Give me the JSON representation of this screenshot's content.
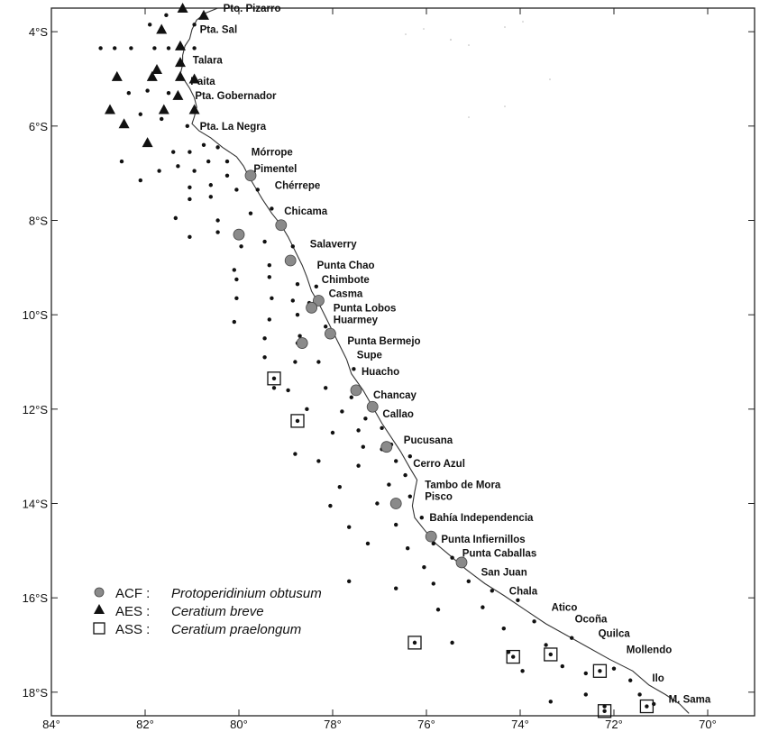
{
  "map": {
    "lon_range": [
      -84,
      -69
    ],
    "lat_range": [
      -18.5,
      -3.5
    ],
    "lat_ticks": [
      {
        "lat": -4,
        "label": "4°S"
      },
      {
        "lat": -6,
        "label": "6°S"
      },
      {
        "lat": -8,
        "label": "8°S"
      },
      {
        "lat": -10,
        "label": "10°S"
      },
      {
        "lat": -12,
        "label": "12°S"
      },
      {
        "lat": -14,
        "label": "14°S"
      },
      {
        "lat": -16,
        "label": "16°S"
      },
      {
        "lat": -18,
        "label": "18°S"
      }
    ],
    "lon_ticks": [
      {
        "lon": -84,
        "label": "84°"
      },
      {
        "lon": -82,
        "label": "82°"
      },
      {
        "lon": -80,
        "label": "80°"
      },
      {
        "lon": -78,
        "label": "78°"
      },
      {
        "lon": -76,
        "label": "76°"
      },
      {
        "lon": -74,
        "label": "74°"
      },
      {
        "lon": -72,
        "label": "72°"
      },
      {
        "lon": -70,
        "label": "70°"
      }
    ],
    "coastline": [
      [
        -80.45,
        -3.5
      ],
      [
        -80.7,
        -3.6
      ],
      [
        -80.9,
        -3.75
      ],
      [
        -81.0,
        -3.95
      ],
      [
        -81.05,
        -4.15
      ],
      [
        -81.15,
        -4.3
      ],
      [
        -81.2,
        -4.5
      ],
      [
        -81.2,
        -4.7
      ],
      [
        -81.25,
        -4.9
      ],
      [
        -81.15,
        -5.05
      ],
      [
        -81.05,
        -5.2
      ],
      [
        -80.95,
        -5.4
      ],
      [
        -80.9,
        -5.6
      ],
      [
        -80.95,
        -5.8
      ],
      [
        -81.0,
        -5.95
      ],
      [
        -80.85,
        -6.1
      ],
      [
        -80.6,
        -6.25
      ],
      [
        -80.35,
        -6.45
      ],
      [
        -80.05,
        -6.65
      ],
      [
        -79.9,
        -6.85
      ],
      [
        -79.8,
        -7.05
      ],
      [
        -79.65,
        -7.3
      ],
      [
        -79.5,
        -7.55
      ],
      [
        -79.3,
        -7.85
      ],
      [
        -79.1,
        -8.1
      ],
      [
        -78.95,
        -8.35
      ],
      [
        -78.8,
        -8.65
      ],
      [
        -78.65,
        -8.95
      ],
      [
        -78.55,
        -9.2
      ],
      [
        -78.45,
        -9.5
      ],
      [
        -78.3,
        -9.75
      ],
      [
        -78.15,
        -10.05
      ],
      [
        -78.0,
        -10.35
      ],
      [
        -77.85,
        -10.65
      ],
      [
        -77.7,
        -10.95
      ],
      [
        -77.6,
        -11.25
      ],
      [
        -77.35,
        -11.6
      ],
      [
        -77.15,
        -11.95
      ],
      [
        -76.95,
        -12.3
      ],
      [
        -76.75,
        -12.6
      ],
      [
        -76.55,
        -12.9
      ],
      [
        -76.35,
        -13.25
      ],
      [
        -76.2,
        -13.5
      ],
      [
        -76.25,
        -13.75
      ],
      [
        -76.3,
        -14.05
      ],
      [
        -76.25,
        -14.3
      ],
      [
        -76.05,
        -14.55
      ],
      [
        -75.8,
        -14.85
      ],
      [
        -75.5,
        -15.1
      ],
      [
        -75.15,
        -15.4
      ],
      [
        -74.75,
        -15.7
      ],
      [
        -74.35,
        -15.95
      ],
      [
        -73.9,
        -16.25
      ],
      [
        -73.45,
        -16.55
      ],
      [
        -73.0,
        -16.8
      ],
      [
        -72.55,
        -17.05
      ],
      [
        -72.1,
        -17.3
      ],
      [
        -71.6,
        -17.55
      ],
      [
        -71.25,
        -17.85
      ],
      [
        -70.9,
        -18.05
      ],
      [
        -70.6,
        -18.25
      ],
      [
        -70.4,
        -18.45
      ]
    ],
    "places": [
      {
        "name": "Pto. Pizarro",
        "lon": -80.45,
        "lat": -3.5
      },
      {
        "name": "Pta. Sal",
        "lon": -80.95,
        "lat": -3.95
      },
      {
        "name": "Talara",
        "lon": -81.1,
        "lat": -4.6
      },
      {
        "name": "Paita",
        "lon": -81.15,
        "lat": -5.05
      },
      {
        "name": "Pta. Gobernador",
        "lon": -81.05,
        "lat": -5.35
      },
      {
        "name": "Pta. La Negra",
        "lon": -80.95,
        "lat": -6.0
      },
      {
        "name": "Mórrope",
        "lon": -79.85,
        "lat": -6.55
      },
      {
        "name": "Pimentel",
        "lon": -79.8,
        "lat": -6.9
      },
      {
        "name": "Chérrepe",
        "lon": -79.35,
        "lat": -7.25
      },
      {
        "name": "Chicama",
        "lon": -79.15,
        "lat": -7.8
      },
      {
        "name": "Salaverry",
        "lon": -78.6,
        "lat": -8.5
      },
      {
        "name": "Punta Chao",
        "lon": -78.45,
        "lat": -8.95
      },
      {
        "name": "Chimbote",
        "lon": -78.35,
        "lat": -9.25
      },
      {
        "name": "Casma",
        "lon": -78.2,
        "lat": -9.55
      },
      {
        "name": "Punta Lobos",
        "lon": -78.1,
        "lat": -9.85
      },
      {
        "name": "Huarmey",
        "lon": -78.1,
        "lat": -10.1
      },
      {
        "name": "Punta Bermejo",
        "lon": -77.8,
        "lat": -10.55
      },
      {
        "name": "Supe",
        "lon": -77.6,
        "lat": -10.85
      },
      {
        "name": "Huacho",
        "lon": -77.5,
        "lat": -11.2
      },
      {
        "name": "Chancay",
        "lon": -77.25,
        "lat": -11.7
      },
      {
        "name": "Callao",
        "lon": -77.05,
        "lat": -12.1
      },
      {
        "name": "Pucusana",
        "lon": -76.6,
        "lat": -12.65
      },
      {
        "name": "Cerro Azul",
        "lon": -76.4,
        "lat": -13.15
      },
      {
        "name": "Tambo de Mora",
        "lon": -76.15,
        "lat": -13.6
      },
      {
        "name": "Pisco",
        "lon": -76.15,
        "lat": -13.85
      },
      {
        "name": "Bahía Independencia",
        "lon": -76.05,
        "lat": -14.3
      },
      {
        "name": "Punta Infiernillos",
        "lon": -75.8,
        "lat": -14.75
      },
      {
        "name": "Punta Caballas",
        "lon": -75.35,
        "lat": -15.05
      },
      {
        "name": "San Juan",
        "lon": -74.95,
        "lat": -15.45
      },
      {
        "name": "Chala",
        "lon": -74.35,
        "lat": -15.85
      },
      {
        "name": "Atico",
        "lon": -73.45,
        "lat": -16.2
      },
      {
        "name": "Ocoña",
        "lon": -72.95,
        "lat": -16.45
      },
      {
        "name": "Quilca",
        "lon": -72.45,
        "lat": -16.75
      },
      {
        "name": "Mollendo",
        "lon": -71.85,
        "lat": -17.1
      },
      {
        "name": "Ilo",
        "lon": -71.3,
        "lat": -17.7
      },
      {
        "name": "M. Sama",
        "lon": -70.95,
        "lat": -18.15
      }
    ],
    "stations": [
      [
        -82.95,
        -4.35
      ],
      [
        -82.65,
        -4.35
      ],
      [
        -82.3,
        -4.35
      ],
      [
        -81.8,
        -4.35
      ],
      [
        -81.5,
        -4.35
      ],
      [
        -80.95,
        -4.35
      ],
      [
        -81.9,
        -3.85
      ],
      [
        -81.55,
        -3.65
      ],
      [
        -80.95,
        -3.85
      ],
      [
        -82.35,
        -5.3
      ],
      [
        -81.95,
        -5.25
      ],
      [
        -81.5,
        -5.3
      ],
      [
        -82.1,
        -5.75
      ],
      [
        -81.65,
        -5.85
      ],
      [
        -81.1,
        -6.0
      ],
      [
        -82.5,
        -6.75
      ],
      [
        -82.1,
        -7.15
      ],
      [
        -81.7,
        -6.95
      ],
      [
        -81.4,
        -6.55
      ],
      [
        -81.05,
        -6.55
      ],
      [
        -80.75,
        -6.4
      ],
      [
        -80.45,
        -6.45
      ],
      [
        -81.3,
        -6.85
      ],
      [
        -80.95,
        -6.95
      ],
      [
        -80.65,
        -6.75
      ],
      [
        -80.25,
        -6.75
      ],
      [
        -81.05,
        -7.3
      ],
      [
        -80.6,
        -7.25
      ],
      [
        -80.25,
        -7.05
      ],
      [
        -81.05,
        -7.55
      ],
      [
        -80.6,
        -7.5
      ],
      [
        -80.05,
        -7.35
      ],
      [
        -79.6,
        -7.35
      ],
      [
        -81.35,
        -7.95
      ],
      [
        -81.05,
        -8.35
      ],
      [
        -80.45,
        -8.0
      ],
      [
        -79.75,
        -7.85
      ],
      [
        -79.3,
        -7.75
      ],
      [
        -80.45,
        -8.25
      ],
      [
        -79.45,
        -8.45
      ],
      [
        -79.95,
        -8.55
      ],
      [
        -79.35,
        -8.95
      ],
      [
        -78.85,
        -8.55
      ],
      [
        -80.1,
        -9.05
      ],
      [
        -80.05,
        -9.25
      ],
      [
        -79.35,
        -9.2
      ],
      [
        -78.75,
        -9.35
      ],
      [
        -78.35,
        -9.4
      ],
      [
        -80.05,
        -9.65
      ],
      [
        -79.3,
        -9.65
      ],
      [
        -78.85,
        -9.7
      ],
      [
        -78.5,
        -9.75
      ],
      [
        -80.1,
        -10.15
      ],
      [
        -79.35,
        -10.1
      ],
      [
        -78.75,
        -10.0
      ],
      [
        -79.45,
        -10.5
      ],
      [
        -78.7,
        -10.45
      ],
      [
        -78.75,
        -10.6
      ],
      [
        -78.15,
        -10.25
      ],
      [
        -79.45,
        -10.9
      ],
      [
        -78.8,
        -11.0
      ],
      [
        -78.3,
        -11.0
      ],
      [
        -77.55,
        -11.15
      ],
      [
        -78.95,
        -11.6
      ],
      [
        -78.15,
        -11.55
      ],
      [
        -77.6,
        -11.75
      ],
      [
        -79.25,
        -11.55
      ],
      [
        -78.55,
        -12.0
      ],
      [
        -77.8,
        -12.05
      ],
      [
        -77.3,
        -12.2
      ],
      [
        -78.0,
        -12.5
      ],
      [
        -77.45,
        -12.45
      ],
      [
        -76.95,
        -12.4
      ],
      [
        -78.8,
        -12.95
      ],
      [
        -77.35,
        -12.8
      ],
      [
        -76.95,
        -12.85
      ],
      [
        -76.75,
        -12.75
      ],
      [
        -78.3,
        -13.1
      ],
      [
        -77.45,
        -13.2
      ],
      [
        -76.65,
        -13.1
      ],
      [
        -76.35,
        -13.0
      ],
      [
        -77.85,
        -13.65
      ],
      [
        -76.8,
        -13.6
      ],
      [
        -76.45,
        -13.4
      ],
      [
        -78.05,
        -14.05
      ],
      [
        -77.05,
        -14.0
      ],
      [
        -76.35,
        -13.85
      ],
      [
        -77.65,
        -14.5
      ],
      [
        -76.65,
        -14.45
      ],
      [
        -76.1,
        -14.3
      ],
      [
        -77.25,
        -14.85
      ],
      [
        -76.4,
        -14.95
      ],
      [
        -75.85,
        -14.85
      ],
      [
        -76.05,
        -15.35
      ],
      [
        -75.45,
        -15.15
      ],
      [
        -75.85,
        -15.7
      ],
      [
        -75.1,
        -15.65
      ],
      [
        -74.6,
        -15.85
      ],
      [
        -77.65,
        -15.65
      ],
      [
        -76.65,
        -15.8
      ],
      [
        -75.75,
        -16.25
      ],
      [
        -74.8,
        -16.2
      ],
      [
        -74.05,
        -16.05
      ],
      [
        -75.45,
        -16.95
      ],
      [
        -74.35,
        -16.65
      ],
      [
        -73.7,
        -16.5
      ],
      [
        -74.25,
        -17.15
      ],
      [
        -73.95,
        -17.55
      ],
      [
        -73.45,
        -17.0
      ],
      [
        -72.9,
        -16.85
      ],
      [
        -73.1,
        -17.45
      ],
      [
        -72.6,
        -17.6
      ],
      [
        -72.0,
        -17.5
      ],
      [
        -73.35,
        -18.2
      ],
      [
        -72.6,
        -18.05
      ],
      [
        -71.65,
        -17.75
      ],
      [
        -72.2,
        -18.3
      ],
      [
        -71.45,
        -18.05
      ],
      [
        -71.15,
        -18.25
      ]
    ],
    "acf": [
      [
        -79.75,
        -7.05
      ],
      [
        -80.0,
        -8.3
      ],
      [
        -79.1,
        -8.1
      ],
      [
        -78.9,
        -8.85
      ],
      [
        -78.3,
        -9.7
      ],
      [
        -78.45,
        -9.85
      ],
      [
        -78.05,
        -10.4
      ],
      [
        -78.65,
        -10.6
      ],
      [
        -77.5,
        -11.6
      ],
      [
        -77.15,
        -11.95
      ],
      [
        -76.85,
        -12.8
      ],
      [
        -76.65,
        -14.0
      ],
      [
        -75.9,
        -14.7
      ],
      [
        -75.25,
        -15.25
      ]
    ],
    "aes": [
      [
        -81.2,
        -3.5
      ],
      [
        -80.75,
        -3.65
      ],
      [
        -81.65,
        -3.95
      ],
      [
        -81.25,
        -4.3
      ],
      [
        -81.25,
        -4.65
      ],
      [
        -81.75,
        -4.8
      ],
      [
        -82.6,
        -4.95
      ],
      [
        -81.85,
        -4.95
      ],
      [
        -81.25,
        -4.95
      ],
      [
        -80.95,
        -5.0
      ],
      [
        -81.3,
        -5.35
      ],
      [
        -82.75,
        -5.65
      ],
      [
        -81.6,
        -5.65
      ],
      [
        -80.95,
        -5.65
      ],
      [
        -82.45,
        -5.95
      ],
      [
        -81.95,
        -6.35
      ]
    ],
    "ass": [
      [
        -79.25,
        -11.35
      ],
      [
        -78.75,
        -12.25
      ],
      [
        -76.25,
        -16.95
      ],
      [
        -74.15,
        -17.25
      ],
      [
        -73.35,
        -17.2
      ],
      [
        -72.3,
        -17.55
      ],
      [
        -72.2,
        -18.4
      ],
      [
        -71.3,
        -18.3
      ]
    ],
    "legend": {
      "acf_code": "ACF :",
      "acf_species": "Protoperidinium obtusum",
      "aes_code": "AES :",
      "aes_species": "Ceratium breve",
      "ass_code": "ASS :",
      "ass_species": "Ceratium praelongum"
    }
  }
}
